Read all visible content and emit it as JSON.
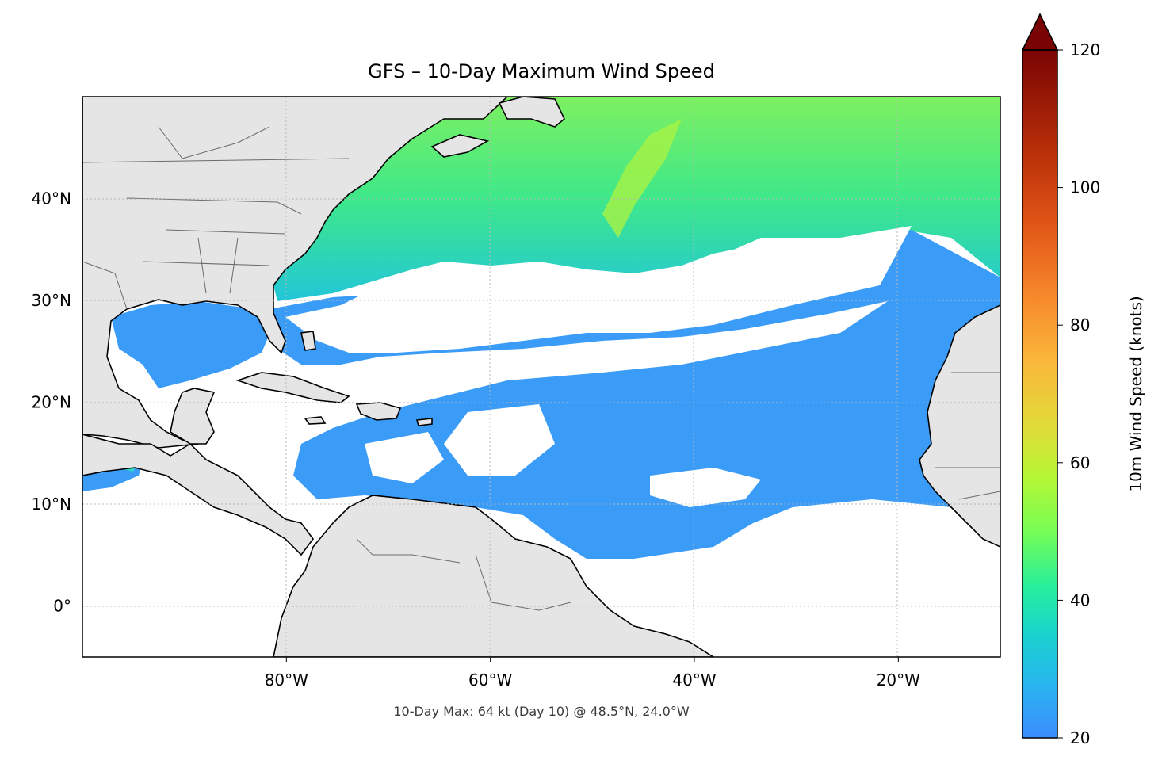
{
  "title": "GFS – 10-Day Maximum Wind Speed",
  "footer": "10-Day Max: 64 kt (Day 10) @ 48.5°N, 24.0°W",
  "map": {
    "lon_range": [
      -100,
      -10
    ],
    "lat_range": [
      -5,
      50
    ],
    "lon_ticks": [
      {
        "value": -80,
        "label": "80°W"
      },
      {
        "value": -60,
        "label": "60°W"
      },
      {
        "value": -40,
        "label": "40°W"
      },
      {
        "value": -20,
        "label": "20°W"
      }
    ],
    "lat_ticks": [
      {
        "value": 40,
        "label": "40°N"
      },
      {
        "value": 30,
        "label": "30°N"
      },
      {
        "value": 20,
        "label": "20°N"
      },
      {
        "value": 10,
        "label": "10°N"
      },
      {
        "value": 0,
        "label": "0°"
      }
    ],
    "gridlines": true,
    "land_color": "#e5e5e5",
    "ocean_no_data_color": "#ffffff"
  },
  "colorbar": {
    "label": "10m Wind Speed (knots)",
    "range": [
      20,
      120
    ],
    "extend": "max",
    "ticks": [
      {
        "value": 20,
        "label": "20"
      },
      {
        "value": 40,
        "label": "40"
      },
      {
        "value": 60,
        "label": "60"
      },
      {
        "value": 80,
        "label": "80"
      },
      {
        "value": 100,
        "label": "100"
      },
      {
        "value": 120,
        "label": "120"
      }
    ],
    "colormap": "turbo"
  },
  "max_point": {
    "value_kt": 64,
    "day": 10,
    "lat": 48.5,
    "lon": -24.0
  }
}
